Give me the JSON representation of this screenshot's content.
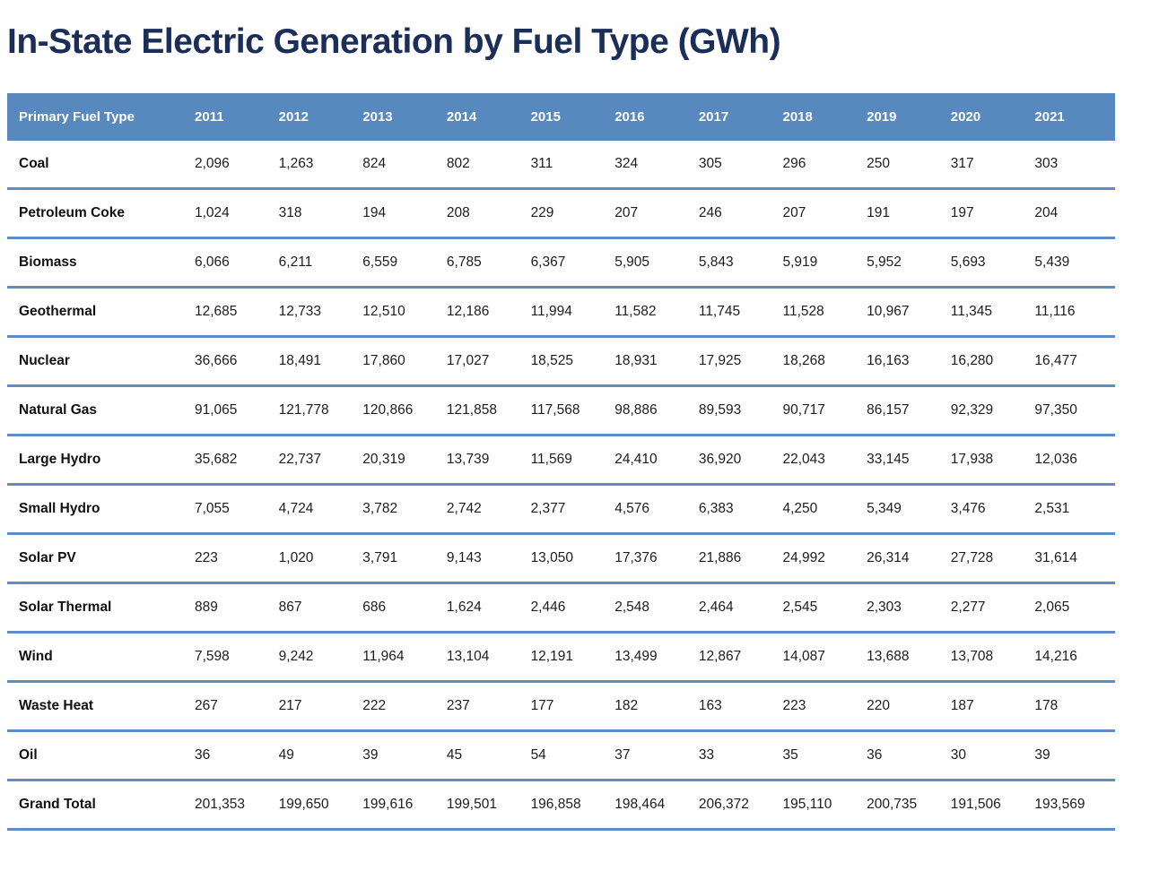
{
  "page": {
    "title": "In-State Electric Generation by Fuel Type (GWh)"
  },
  "colors": {
    "title_text": "#1a2e59",
    "header_bg": "#5789bf",
    "header_text": "#ffffff",
    "row_divider": "#5d8dc4",
    "cell_text": "#1c1c1c"
  },
  "table": {
    "header": {
      "label_col": "Primary Fuel Type",
      "years": [
        "2011",
        "2012",
        "2013",
        "2014",
        "2015",
        "2016",
        "2017",
        "2018",
        "2019",
        "2020",
        "2021"
      ]
    },
    "rows": [
      {
        "label": "Coal",
        "values": [
          "2,096",
          "1,263",
          "824",
          "802",
          "311",
          "324",
          "305",
          "296",
          "250",
          "317",
          "303"
        ]
      },
      {
        "label": "Petroleum Coke",
        "values": [
          "1,024",
          "318",
          "194",
          "208",
          "229",
          "207",
          "246",
          "207",
          "191",
          "197",
          "204"
        ]
      },
      {
        "label": "Biomass",
        "values": [
          "6,066",
          "6,211",
          "6,559",
          "6,785",
          "6,367",
          "5,905",
          "5,843",
          "5,919",
          "5,952",
          "5,693",
          "5,439"
        ]
      },
      {
        "label": "Geothermal",
        "values": [
          "12,685",
          "12,733",
          "12,510",
          "12,186",
          "11,994",
          "11,582",
          "11,745",
          "11,528",
          "10,967",
          "11,345",
          "11,116"
        ]
      },
      {
        "label": "Nuclear",
        "values": [
          "36,666",
          "18,491",
          "17,860",
          "17,027",
          "18,525",
          "18,931",
          "17,925",
          "18,268",
          "16,163",
          "16,280",
          "16,477"
        ]
      },
      {
        "label": "Natural Gas",
        "values": [
          "91,065",
          "121,778",
          "120,866",
          "121,858",
          "117,568",
          "98,886",
          "89,593",
          "90,717",
          "86,157",
          "92,329",
          "97,350"
        ]
      },
      {
        "label": "Large Hydro",
        "values": [
          "35,682",
          "22,737",
          "20,319",
          "13,739",
          "11,569",
          "24,410",
          "36,920",
          "22,043",
          "33,145",
          "17,938",
          "12,036"
        ]
      },
      {
        "label": "Small Hydro",
        "values": [
          "7,055",
          "4,724",
          "3,782",
          "2,742",
          "2,377",
          "4,576",
          "6,383",
          "4,250",
          "5,349",
          "3,476",
          "2,531"
        ]
      },
      {
        "label": "Solar PV",
        "values": [
          "223",
          "1,020",
          "3,791",
          "9,143",
          "13,050",
          "17,376",
          "21,886",
          "24,992",
          "26,314",
          "27,728",
          "31,614"
        ]
      },
      {
        "label": "Solar Thermal",
        "values": [
          "889",
          "867",
          "686",
          "1,624",
          "2,446",
          "2,548",
          "2,464",
          "2,545",
          "2,303",
          "2,277",
          "2,065"
        ]
      },
      {
        "label": "Wind",
        "values": [
          "7,598",
          "9,242",
          "11,964",
          "13,104",
          "12,191",
          "13,499",
          "12,867",
          "14,087",
          "13,688",
          "13,708",
          "14,216"
        ]
      },
      {
        "label": "Waste Heat",
        "values": [
          "267",
          "217",
          "222",
          "237",
          "177",
          "182",
          "163",
          "223",
          "220",
          "187",
          "178"
        ]
      },
      {
        "label": "Oil",
        "values": [
          "36",
          "49",
          "39",
          "45",
          "54",
          "37",
          "33",
          "35",
          "36",
          "30",
          "39"
        ]
      },
      {
        "label": "Grand Total",
        "values": [
          "201,353",
          "199,650",
          "199,616",
          "199,501",
          "196,858",
          "198,464",
          "206,372",
          "195,110",
          "200,735",
          "191,506",
          "193,569"
        ]
      }
    ]
  },
  "chart_data": {
    "type": "table",
    "title": "In-State Electric Generation by Fuel Type (GWh)",
    "columns": [
      "Primary Fuel Type",
      2011,
      2012,
      2013,
      2014,
      2015,
      2016,
      2017,
      2018,
      2019,
      2020,
      2021
    ],
    "rows": [
      {
        "name": "Coal",
        "values": [
          2096,
          1263,
          824,
          802,
          311,
          324,
          305,
          296,
          250,
          317,
          303
        ]
      },
      {
        "name": "Petroleum Coke",
        "values": [
          1024,
          318,
          194,
          208,
          229,
          207,
          246,
          207,
          191,
          197,
          204
        ]
      },
      {
        "name": "Biomass",
        "values": [
          6066,
          6211,
          6559,
          6785,
          6367,
          5905,
          5843,
          5919,
          5952,
          5693,
          5439
        ]
      },
      {
        "name": "Geothermal",
        "values": [
          12685,
          12733,
          12510,
          12186,
          11994,
          11582,
          11745,
          11528,
          10967,
          11345,
          11116
        ]
      },
      {
        "name": "Nuclear",
        "values": [
          36666,
          18491,
          17860,
          17027,
          18525,
          18931,
          17925,
          18268,
          16163,
          16280,
          16477
        ]
      },
      {
        "name": "Natural Gas",
        "values": [
          91065,
          121778,
          120866,
          121858,
          117568,
          98886,
          89593,
          90717,
          86157,
          92329,
          97350
        ]
      },
      {
        "name": "Large Hydro",
        "values": [
          35682,
          22737,
          20319,
          13739,
          11569,
          24410,
          36920,
          22043,
          33145,
          17938,
          12036
        ]
      },
      {
        "name": "Small Hydro",
        "values": [
          7055,
          4724,
          3782,
          2742,
          2377,
          4576,
          6383,
          4250,
          5349,
          3476,
          2531
        ]
      },
      {
        "name": "Solar PV",
        "values": [
          223,
          1020,
          3791,
          9143,
          13050,
          17376,
          21886,
          24992,
          26314,
          27728,
          31614
        ]
      },
      {
        "name": "Solar Thermal",
        "values": [
          889,
          867,
          686,
          1624,
          2446,
          2548,
          2464,
          2545,
          2303,
          2277,
          2065
        ]
      },
      {
        "name": "Wind",
        "values": [
          7598,
          9242,
          11964,
          13104,
          12191,
          13499,
          12867,
          14087,
          13688,
          13708,
          14216
        ]
      },
      {
        "name": "Waste Heat",
        "values": [
          267,
          217,
          222,
          237,
          177,
          182,
          163,
          223,
          220,
          187,
          178
        ]
      },
      {
        "name": "Oil",
        "values": [
          36,
          49,
          39,
          45,
          54,
          37,
          33,
          35,
          36,
          30,
          39
        ]
      },
      {
        "name": "Grand Total",
        "values": [
          201353,
          199650,
          199616,
          199501,
          196858,
          198464,
          206372,
          195110,
          200735,
          191506,
          193569
        ]
      }
    ]
  }
}
